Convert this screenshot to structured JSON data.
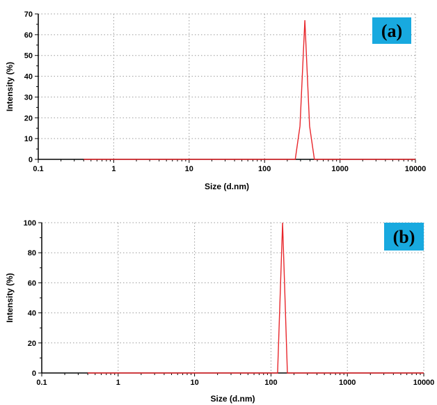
{
  "colors": {
    "series": "#e8262b",
    "label_bg": "#18a9df",
    "grid": "#9a9a9a",
    "axis": "#000000"
  },
  "chart_data": [
    {
      "type": "line",
      "panel_label": "(a)",
      "xlabel": "Size (d.nm)",
      "ylabel": "Intensity (%)",
      "xscale": "log",
      "xlim": [
        0.1,
        10000
      ],
      "ylim": [
        0,
        70
      ],
      "x_ticks": [
        "0.1",
        "1",
        "10",
        "100",
        "1000",
        "10000"
      ],
      "y_ticks": [
        "0",
        "10",
        "20",
        "30",
        "40",
        "50",
        "60",
        "70"
      ],
      "grid": true,
      "series": [
        {
          "x": [
            0.4,
            10,
            100,
            255,
            295,
            342,
            395,
            458,
            1000,
            10000
          ],
          "y": [
            0,
            0,
            0,
            0,
            16,
            67,
            16,
            0,
            0,
            0
          ]
        }
      ]
    },
    {
      "type": "line",
      "panel_label": "(b)",
      "xlabel": "Size (d.nm)",
      "ylabel": "Intensity (%)",
      "xscale": "log",
      "xlim": [
        0.1,
        10000
      ],
      "ylim": [
        0,
        100
      ],
      "x_ticks": [
        "0.1",
        "1",
        "10",
        "100",
        "1000",
        "10000"
      ],
      "y_ticks": [
        "0",
        "20",
        "40",
        "60",
        "80",
        "100"
      ],
      "grid": true,
      "series": [
        {
          "x": [
            0.4,
            10,
            100,
            122,
            142,
            164,
            1000,
            10000
          ],
          "y": [
            0,
            0,
            0,
            0,
            100,
            0,
            0,
            0
          ]
        }
      ]
    }
  ]
}
